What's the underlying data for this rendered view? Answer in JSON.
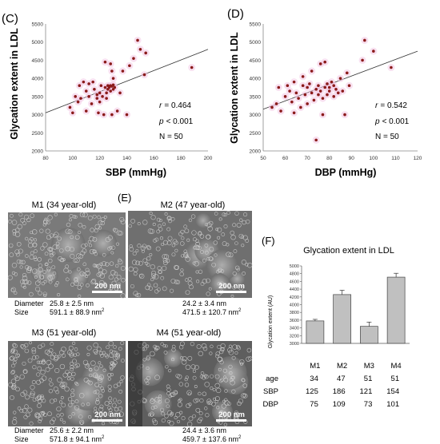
{
  "panels": {
    "c": {
      "label": "(C)"
    },
    "d": {
      "label": "(D)"
    },
    "e": {
      "label": "(E)"
    },
    "f": {
      "label": "(F)"
    }
  },
  "chart_data": [
    {
      "type": "scatter",
      "panel": "(C)",
      "xlabel": "SBP (mmHg)",
      "ylabel": "Glycation extent in LDL",
      "xlim": [
        80,
        200
      ],
      "ylim": [
        2000,
        5500
      ],
      "xticks": [
        80,
        100,
        120,
        140,
        160,
        180,
        200
      ],
      "yticks": [
        2000,
        2500,
        3000,
        3500,
        4000,
        4500,
        5000,
        5500
      ],
      "point_color": "#8b1a1a",
      "points": [
        [
          98,
          3200
        ],
        [
          100,
          3050
        ],
        [
          102,
          3500
        ],
        [
          104,
          3350
        ],
        [
          105,
          3800
        ],
        [
          106,
          3450
        ],
        [
          108,
          3900
        ],
        [
          110,
          3650
        ],
        [
          110,
          3100
        ],
        [
          112,
          3500
        ],
        [
          112,
          3850
        ],
        [
          114,
          3300
        ],
        [
          115,
          3900
        ],
        [
          116,
          3700
        ],
        [
          118,
          3450
        ],
        [
          118,
          3550
        ],
        [
          119,
          3050
        ],
        [
          120,
          3600
        ],
        [
          120,
          3350
        ],
        [
          121,
          3800
        ],
        [
          122,
          3500
        ],
        [
          123,
          3000
        ],
        [
          124,
          3750
        ],
        [
          124,
          4450
        ],
        [
          125,
          3600
        ],
        [
          125,
          3450
        ],
        [
          126,
          3800
        ],
        [
          126,
          3700
        ],
        [
          127,
          3750
        ],
        [
          128,
          3800
        ],
        [
          128,
          3650
        ],
        [
          129,
          3780
        ],
        [
          130,
          3820
        ],
        [
          130,
          3700
        ],
        [
          131,
          3750
        ],
        [
          128,
          4400
        ],
        [
          129,
          4200
        ],
        [
          129,
          3000
        ],
        [
          130,
          4000
        ],
        [
          133,
          3100
        ],
        [
          135,
          3600
        ],
        [
          137,
          4200
        ],
        [
          140,
          3000
        ],
        [
          142,
          4350
        ],
        [
          145,
          4550
        ],
        [
          148,
          5050
        ],
        [
          150,
          4800
        ],
        [
          153,
          4100
        ],
        [
          154,
          4700
        ],
        [
          188,
          4300
        ]
      ],
      "trendline": [
        [
          80,
          3050
        ],
        [
          200,
          4800
        ]
      ],
      "stats": {
        "r_label": "r",
        "r_value": "= 0.464",
        "p_label": "p",
        "p_value": "< 0.001",
        "n_text": "N = 50"
      }
    },
    {
      "type": "scatter",
      "panel": "(D)",
      "xlabel": "DBP (mmHg)",
      "ylabel": "Glycation extent in LDL",
      "xlim": [
        50,
        120
      ],
      "ylim": [
        2000,
        5500
      ],
      "xticks": [
        50,
        60,
        70,
        80,
        90,
        100,
        110,
        120
      ],
      "yticks": [
        2000,
        2500,
        3000,
        3500,
        4000,
        4500,
        5000,
        5500
      ],
      "point_color": "#8b1a1a",
      "points": [
        [
          54,
          3200
        ],
        [
          56,
          3300
        ],
        [
          57,
          3750
        ],
        [
          58,
          3100
        ],
        [
          60,
          3500
        ],
        [
          61,
          3800
        ],
        [
          62,
          3650
        ],
        [
          63,
          3350
        ],
        [
          64,
          3900
        ],
        [
          64,
          3050
        ],
        [
          65,
          3600
        ],
        [
          66,
          3450
        ],
        [
          67,
          3200
        ],
        [
          68,
          3800
        ],
        [
          68,
          4050
        ],
        [
          69,
          3550
        ],
        [
          70,
          3750
        ],
        [
          70,
          3300
        ],
        [
          71,
          3850
        ],
        [
          72,
          3600
        ],
        [
          72,
          4200
        ],
        [
          73,
          3400
        ],
        [
          74,
          3700
        ],
        [
          74,
          2300
        ],
        [
          75,
          3550
        ],
        [
          75,
          3800
        ],
        [
          76,
          3650
        ],
        [
          76,
          4400
        ],
        [
          77,
          3450
        ],
        [
          77,
          3000
        ],
        [
          78,
          3750
        ],
        [
          78,
          4450
        ],
        [
          79,
          3850
        ],
        [
          79,
          3550
        ],
        [
          80,
          3750
        ],
        [
          80,
          3650
        ],
        [
          81,
          3900
        ],
        [
          82,
          3800
        ],
        [
          82,
          3500
        ],
        [
          83,
          3700
        ],
        [
          84,
          3600
        ],
        [
          85,
          4000
        ],
        [
          86,
          3650
        ],
        [
          87,
          3000
        ],
        [
          88,
          4150
        ],
        [
          89,
          3800
        ],
        [
          95,
          4500
        ],
        [
          96,
          5050
        ],
        [
          100,
          4750
        ],
        [
          108,
          4300
        ]
      ],
      "trendline": [
        [
          50,
          3150
        ],
        [
          120,
          4750
        ]
      ],
      "stats": {
        "r_label": "r",
        "r_value": "= 0.542",
        "p_label": "p",
        "p_value": "< 0.001",
        "n_text": "N = 50"
      }
    },
    {
      "type": "bar",
      "panel": "(F)",
      "title": "Glycation extent in  LDL",
      "ylabel": "Glycation extent (AU)",
      "categories": [
        "M1",
        "M2",
        "M3",
        "M4"
      ],
      "values": [
        3580,
        4260,
        3440,
        4710
      ],
      "errors": [
        40,
        110,
        110,
        100
      ],
      "ylim": [
        3000,
        5000
      ],
      "yticks": [
        3000,
        3200,
        3400,
        3600,
        3800,
        4000,
        4200,
        4400,
        4600,
        4800,
        5000
      ],
      "bar_color": "#c0c0c0",
      "table": [
        {
          "label": "age",
          "values": [
            "34",
            "47",
            "51",
            "51"
          ]
        },
        {
          "label": "SBP",
          "values": [
            "125",
            "186",
            "121",
            "154"
          ]
        },
        {
          "label": "DBP",
          "values": [
            "75",
            "109",
            "73",
            "101"
          ]
        }
      ]
    }
  ],
  "micrographs": [
    {
      "title": "M1 (34 year-old)",
      "scale": "200 nm",
      "diam_label": "Diameter",
      "diam_value": "25.8 ± 2.5 nm",
      "size_label": "Size",
      "size_value": "591.1 ± 88.9 nm",
      "unit_sup": "2"
    },
    {
      "title": "M2 (47 year-old)",
      "scale": "200 nm",
      "diam_label": "",
      "diam_value": "24.2 ± 3.4 nm",
      "size_label": "",
      "size_value": "471.5 ± 120.7 nm",
      "unit_sup": "2"
    },
    {
      "title": "M3 (51 year-old)",
      "scale": "200 nm",
      "diam_label": "Diameter",
      "diam_value": "25.6 ± 2.2 nm",
      "size_label": "Size",
      "size_value": "571.8 ± 94.1 nm",
      "unit_sup": "2"
    },
    {
      "title": "M4 (51 year-old)",
      "scale": "200 nm",
      "diam_label": "",
      "diam_value": "24.4 ± 3.6 nm",
      "size_label": "",
      "size_value": "459.7 ± 137.6 nm",
      "unit_sup": "2"
    }
  ]
}
